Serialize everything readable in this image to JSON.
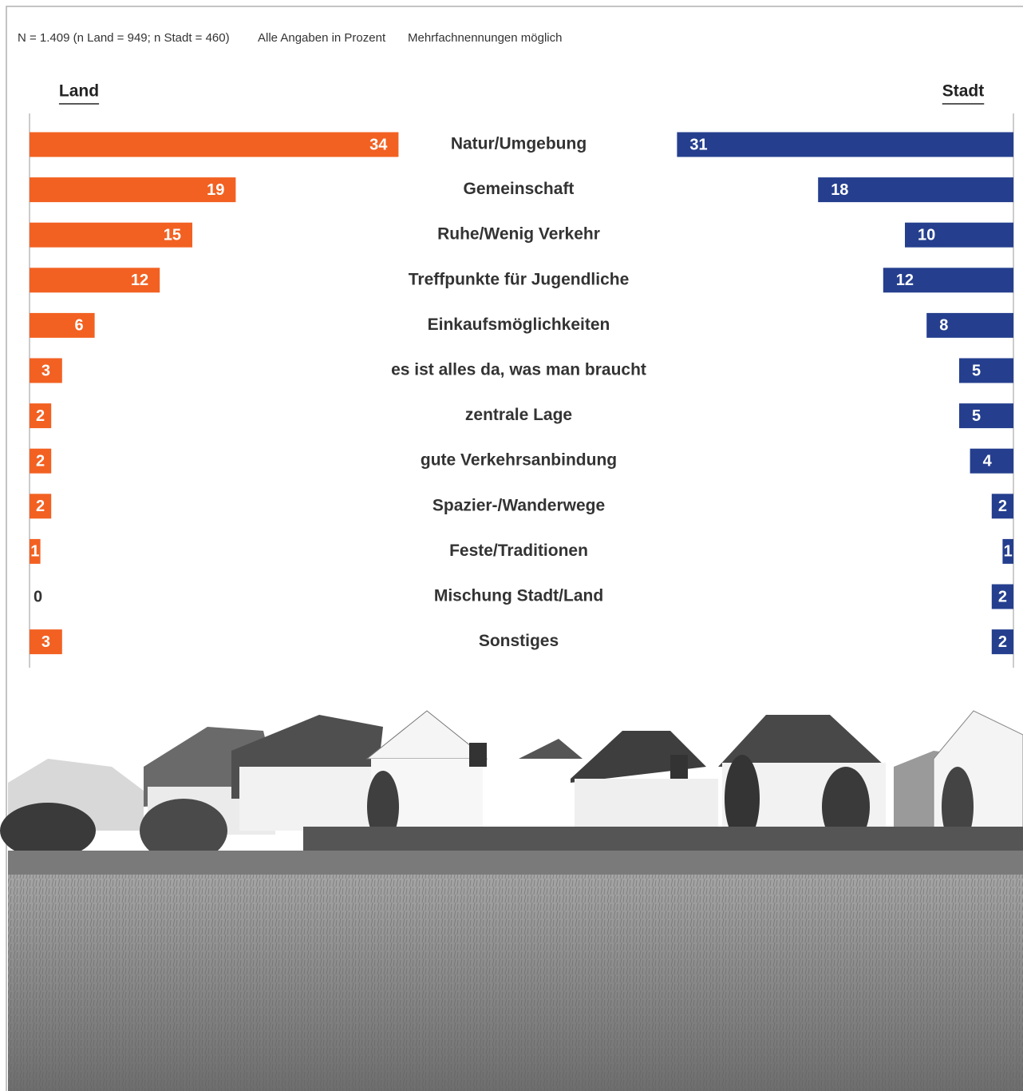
{
  "chart_data": {
    "type": "butterfly",
    "notes": [
      "N = 1.409 (n Land = 949; n Stadt = 460)",
      "Alle Angaben in Prozent",
      "Mehrfachnennungen möglich"
    ],
    "categories": [
      "Natur/Umgebung",
      "Gemeinschaft",
      "Ruhe/Wenig Verkehr",
      "Treffpunkte für Jugendliche",
      "Einkaufsmöglichkeiten",
      "es ist alles da, was man braucht",
      "zentrale Lage",
      "gute Verkehrsanbindung",
      "Spazier-/Wanderwege",
      "Feste/Traditionen",
      "Mischung Stadt/Land",
      "Sonstiges"
    ],
    "series": [
      {
        "name": "Land",
        "color": "#f26122",
        "values": [
          34,
          19,
          15,
          12,
          6,
          3,
          2,
          2,
          2,
          1,
          0,
          3
        ]
      },
      {
        "name": "Stadt",
        "color": "#253f8e",
        "values": [
          31,
          18,
          10,
          12,
          8,
          5,
          5,
          4,
          2,
          1,
          2,
          2
        ]
      }
    ]
  }
}
